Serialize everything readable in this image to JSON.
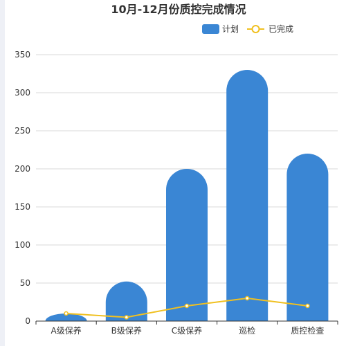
{
  "chart_data": {
    "type": "bar",
    "title": "10月-12月份质控完成情况",
    "categories": [
      "A级保养",
      "B级保养",
      "C级保养",
      "巡检",
      "质控检查"
    ],
    "series": [
      {
        "name": "计划",
        "type": "bar",
        "color": "#3a86d4",
        "values": [
          10,
          52,
          200,
          330,
          220
        ]
      },
      {
        "name": "已完成",
        "type": "line",
        "color": "#f0c020",
        "values": [
          10,
          5,
          20,
          30,
          20
        ]
      }
    ],
    "ylim": [
      0,
      350
    ],
    "yticks": [
      0,
      50,
      100,
      150,
      200,
      250,
      300,
      350
    ],
    "grid": true,
    "legend_position": "top-right",
    "xlabel": "",
    "ylabel": ""
  }
}
